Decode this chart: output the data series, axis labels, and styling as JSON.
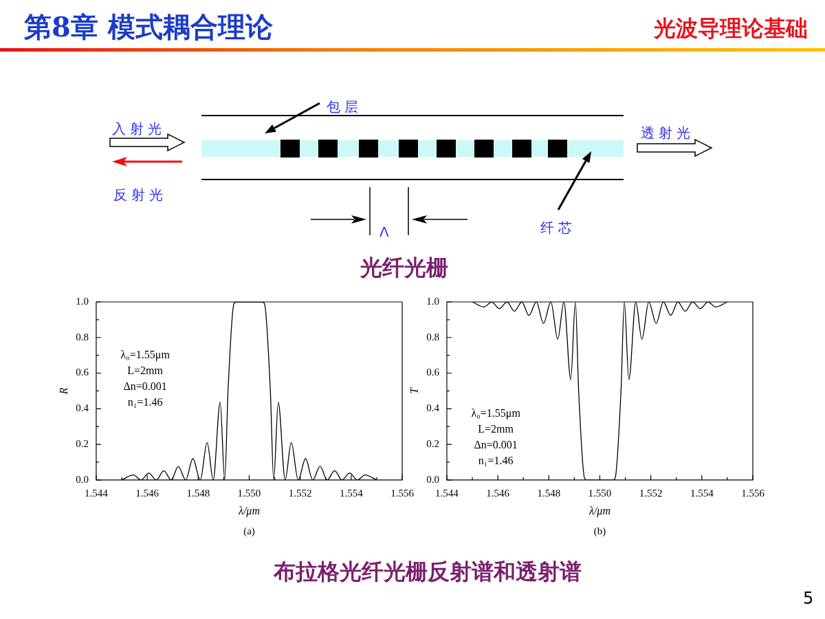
{
  "chart_data": [
    {
      "type": "other",
      "title": "第8章 模式耦合理论",
      "subtitle": "光波导理论基础",
      "annotations": [
        "入射光",
        "反射光",
        "透射光",
        "包层",
        "纤芯",
        "Λ",
        "光纤光栅",
        "布拉格光纤光栅反射谱和透射谱",
        "5"
      ]
    },
    {
      "type": "line",
      "xlabel": "λ/μm",
      "ylabel": "R",
      "color": "#000000",
      "x": [
        1.545,
        1.54546,
        1.54576,
        1.54606,
        1.54636,
        1.54665,
        1.54694,
        1.54722,
        1.54751,
        1.54779,
        1.54808,
        1.54835,
        1.54859,
        1.54886,
        1.54904,
        1.54917,
        1.5494,
        1.5495,
        1.55,
        1.5505,
        1.5506,
        1.55083,
        1.55096,
        1.55114,
        1.55141,
        1.55165,
        1.55192,
        1.55221,
        1.55249,
        1.55278,
        1.55306,
        1.55335,
        1.55364,
        1.55394,
        1.55424,
        1.55454,
        1.555
      ],
      "values": [
        0,
        0.028,
        0,
        0.038,
        0,
        0.052,
        0,
        0.076,
        0,
        0.12,
        0,
        0.21,
        0,
        0.436,
        0,
        0.5,
        0.99,
        1,
        1,
        1,
        0.99,
        0.5,
        0,
        0.436,
        0,
        0.21,
        0,
        0.12,
        0,
        0.076,
        0,
        0.052,
        0,
        0.038,
        0,
        0.028,
        0
      ],
      "xlim": [
        1.544,
        1.556
      ],
      "xticks": [
        1.544,
        {
          "value": 1.545,
          "label": null
        },
        1.546,
        {
          "value": 1.547,
          "label": null
        },
        1.548,
        {
          "value": 1.549,
          "label": null
        },
        {
          "value": 1.55,
          "label": "1.550"
        },
        {
          "value": 1.551,
          "label": null
        },
        1.552,
        {
          "value": 1.553,
          "label": null
        },
        1.554,
        {
          "value": 1.555,
          "label": null
        },
        1.556
      ],
      "ylim": [
        0,
        1
      ],
      "yticks": [
        {
          "value": 0,
          "label": "0.0"
        },
        {
          "value": 0.1,
          "label": null
        },
        0.2,
        {
          "value": 0.3,
          "label": null
        },
        0.4,
        {
          "value": 0.5,
          "label": null
        },
        0.6,
        {
          "value": 0.7,
          "label": null
        },
        0.8,
        {
          "value": 0.9,
          "label": null
        },
        {
          "value": 1,
          "label": "1.0"
        }
      ],
      "annotations": [
        "λ₀=1.55μm",
        "L=2mm",
        "Δn=0.001",
        "n₁=1.46",
        "(a)"
      ]
    },
    {
      "type": "line",
      "xlabel": "λ/μm",
      "ylabel": "T",
      "color": "#000000",
      "x": [
        1.545,
        1.54546,
        1.54576,
        1.54606,
        1.54636,
        1.54665,
        1.54694,
        1.54722,
        1.54751,
        1.54779,
        1.54808,
        1.54835,
        1.54859,
        1.54886,
        1.54904,
        1.54917,
        1.5494,
        1.5495,
        1.55,
        1.5505,
        1.5506,
        1.55083,
        1.55096,
        1.55114,
        1.55141,
        1.55165,
        1.55192,
        1.55221,
        1.55249,
        1.55278,
        1.55306,
        1.55335,
        1.55364,
        1.55394,
        1.55424,
        1.55454,
        1.555
      ],
      "values": [
        1,
        0.972,
        1,
        0.962,
        1,
        0.948,
        1,
        0.924,
        1,
        0.88,
        1,
        0.79,
        1,
        0.564,
        1,
        0.5,
        0.01,
        0,
        0,
        0,
        0.01,
        0.5,
        1,
        0.564,
        1,
        0.79,
        1,
        0.88,
        1,
        0.924,
        1,
        0.948,
        1,
        0.962,
        1,
        0.972,
        1
      ],
      "xlim": [
        1.544,
        1.556
      ],
      "xticks": [
        1.544,
        {
          "value": 1.545,
          "label": null
        },
        1.546,
        {
          "value": 1.547,
          "label": null
        },
        1.548,
        {
          "value": 1.549,
          "label": null
        },
        {
          "value": 1.55,
          "label": "1.550"
        },
        {
          "value": 1.551,
          "label": null
        },
        1.552,
        {
          "value": 1.553,
          "label": null
        },
        1.554,
        {
          "value": 1.555,
          "label": null
        },
        1.556
      ],
      "ylim": [
        0,
        1
      ],
      "yticks": [
        {
          "value": 0,
          "label": "0.0"
        },
        {
          "value": 0.1,
          "label": null
        },
        0.2,
        {
          "value": 0.3,
          "label": null
        },
        0.4,
        {
          "value": 0.5,
          "label": null
        },
        0.6,
        {
          "value": 0.7,
          "label": null
        },
        0.8,
        {
          "value": 0.9,
          "label": null
        },
        {
          "value": 1,
          "label": "1.0"
        }
      ],
      "annotations": [
        "λ₀=1.55μm",
        "L=2mm",
        "Δn=0.001",
        "n₁=1.46",
        "(b)"
      ]
    }
  ]
}
